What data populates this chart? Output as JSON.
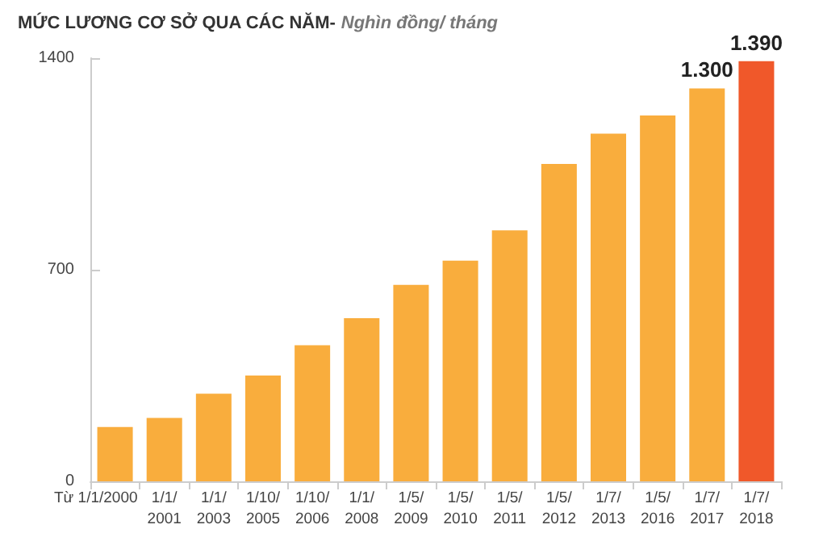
{
  "chart_data": {
    "type": "bar",
    "title": "MỨC LƯƠNG CƠ SỞ QUA CÁC NĂM-",
    "subtitle": "Nghìn đồng/ tháng",
    "categories": [
      "Từ 1/1/2000",
      "1/1/\n2001",
      "1/1/\n2003",
      "1/10/\n2005",
      "1/10/\n2006",
      "1/1/\n2008",
      "1/5/\n2009",
      "1/5/\n2010",
      "1/5/\n2011",
      "1/5/\n2012",
      "1/7/\n2013",
      "1/5/\n2016",
      "1/7/\n2017",
      "1/7/\n2018"
    ],
    "values": [
      180,
      210,
      290,
      350,
      450,
      540,
      650,
      730,
      830,
      1050,
      1150,
      1210,
      1300,
      1390
    ],
    "colors": [
      "#f9ad3d",
      "#f9ad3d",
      "#f9ad3d",
      "#f9ad3d",
      "#f9ad3d",
      "#f9ad3d",
      "#f9ad3d",
      "#f9ad3d",
      "#f9ad3d",
      "#f9ad3d",
      "#f9ad3d",
      "#f9ad3d",
      "#f9ad3d",
      "#f0582a"
    ],
    "value_labels": [
      null,
      null,
      null,
      null,
      null,
      null,
      null,
      null,
      null,
      null,
      null,
      null,
      "1.300",
      "1.390"
    ],
    "ylim": [
      0,
      1400
    ],
    "yticks": [
      0,
      700,
      1400
    ],
    "grid": false
  }
}
